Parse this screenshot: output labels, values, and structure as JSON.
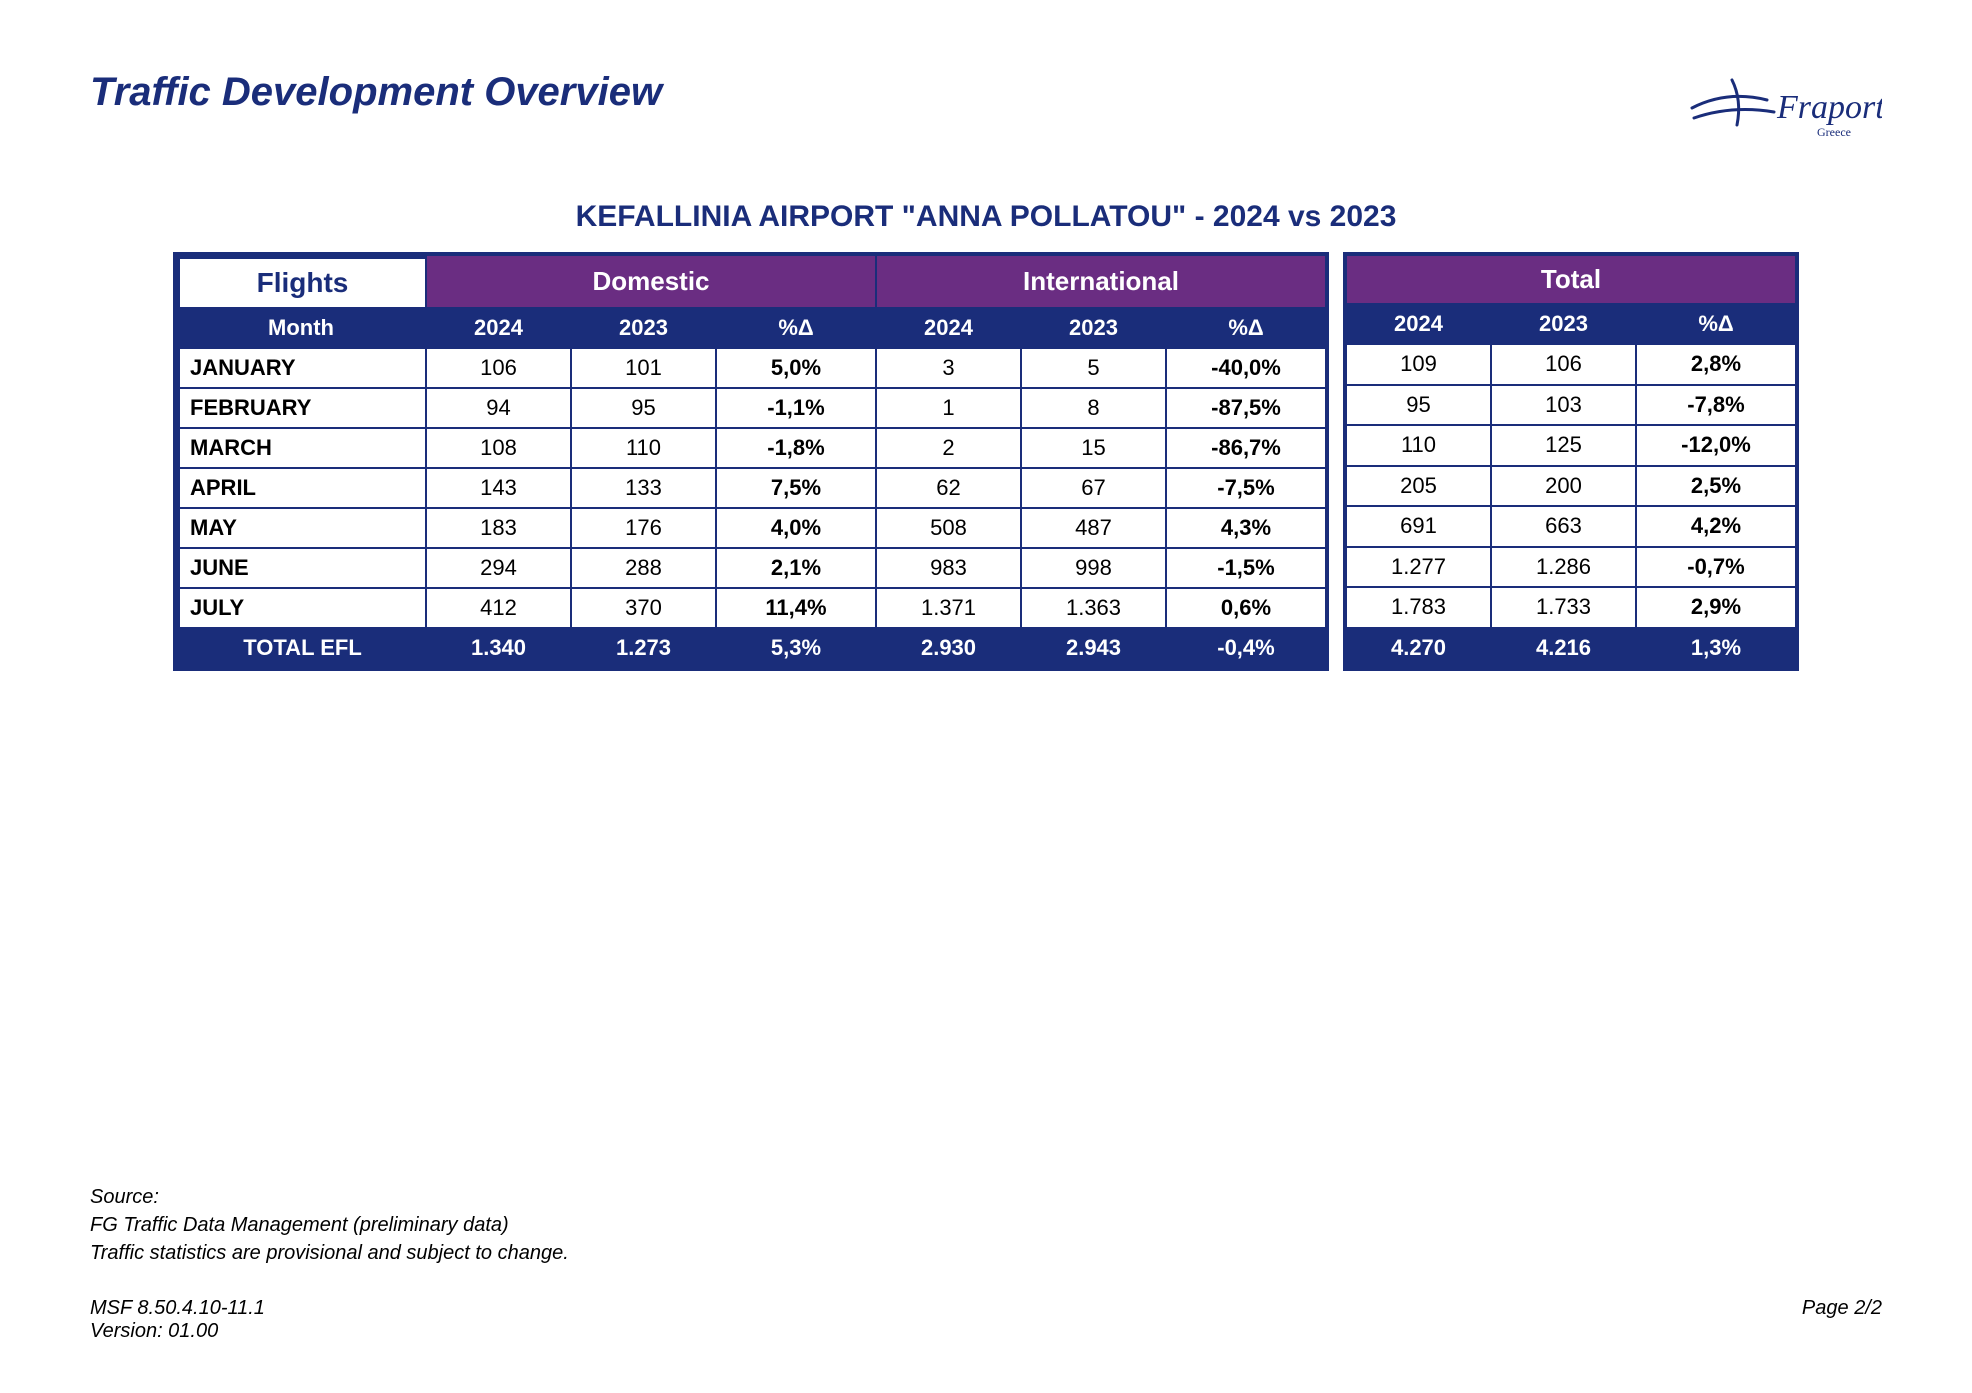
{
  "page_title": "Traffic Development Overview",
  "logo": {
    "brand": "Fraport",
    "sub": "Greece",
    "color": "#1a2d7a"
  },
  "table_title": "KEFALLINIA AIRPORT \"ANNA POLLATOU\" - 2024 vs 2023",
  "colors": {
    "section_header_bg": "#6a2d82",
    "col_header_bg": "#1a2d7a",
    "header_text": "#ffffff",
    "border": "#1a2d7a",
    "title_text": "#1a2d7a"
  },
  "sections": {
    "flights_label": "Flights",
    "domestic_label": "Domestic",
    "international_label": "International",
    "total_label": "Total"
  },
  "columns": {
    "month": "Month",
    "y2024": "2024",
    "y2023": "2023",
    "delta": "%Δ"
  },
  "rows": [
    {
      "month": "JANUARY",
      "dom": [
        "106",
        "101",
        "5,0%"
      ],
      "intl": [
        "3",
        "5",
        "-40,0%"
      ],
      "tot": [
        "109",
        "106",
        "2,8%"
      ]
    },
    {
      "month": "FEBRUARY",
      "dom": [
        "94",
        "95",
        "-1,1%"
      ],
      "intl": [
        "1",
        "8",
        "-87,5%"
      ],
      "tot": [
        "95",
        "103",
        "-7,8%"
      ]
    },
    {
      "month": "MARCH",
      "dom": [
        "108",
        "110",
        "-1,8%"
      ],
      "intl": [
        "2",
        "15",
        "-86,7%"
      ],
      "tot": [
        "110",
        "125",
        "-12,0%"
      ]
    },
    {
      "month": "APRIL",
      "dom": [
        "143",
        "133",
        "7,5%"
      ],
      "intl": [
        "62",
        "67",
        "-7,5%"
      ],
      "tot": [
        "205",
        "200",
        "2,5%"
      ]
    },
    {
      "month": "MAY",
      "dom": [
        "183",
        "176",
        "4,0%"
      ],
      "intl": [
        "508",
        "487",
        "4,3%"
      ],
      "tot": [
        "691",
        "663",
        "4,2%"
      ]
    },
    {
      "month": "JUNE",
      "dom": [
        "294",
        "288",
        "2,1%"
      ],
      "intl": [
        "983",
        "998",
        "-1,5%"
      ],
      "tot": [
        "1.277",
        "1.286",
        "-0,7%"
      ]
    },
    {
      "month": "JULY",
      "dom": [
        "412",
        "370",
        "11,4%"
      ],
      "intl": [
        "1.371",
        "1.363",
        "0,6%"
      ],
      "tot": [
        "1.783",
        "1.733",
        "2,9%"
      ]
    }
  ],
  "total_row": {
    "label": "TOTAL EFL",
    "dom": [
      "1.340",
      "1.273",
      "5,3%"
    ],
    "intl": [
      "2.930",
      "2.943",
      "-0,4%"
    ],
    "tot": [
      "4.270",
      "4.216",
      "1,3%"
    ]
  },
  "footer": {
    "source_label": "Source:",
    "source_line1": "FG Traffic Data Management (preliminary data)",
    "source_line2": "Traffic statistics are provisional and subject to change.",
    "msf": "MSF 8.50.4.10-11.1",
    "version": "Version: 01.00",
    "page": "Page 2/2"
  }
}
